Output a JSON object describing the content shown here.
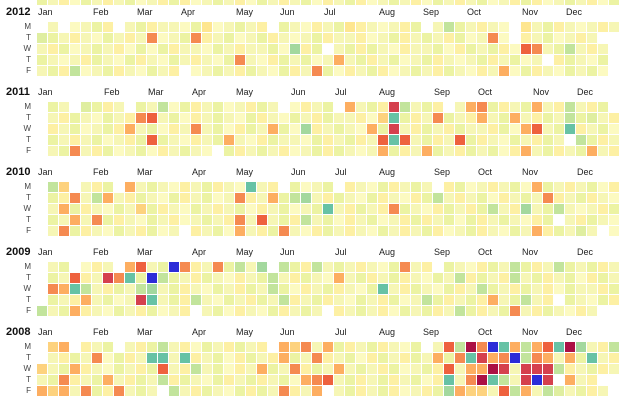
{
  "chart_data": {
    "type": "heatmap",
    "subtype": "calendar-by-year",
    "title": "",
    "row_labels": [
      "M",
      "T",
      "W",
      "T",
      "F"
    ],
    "column_months": [
      "Jan",
      "Feb",
      "Mar",
      "Apr",
      "May",
      "Jun",
      "Jul",
      "Aug",
      "Sep",
      "Oct",
      "Nov",
      "Dec"
    ],
    "weeks_per_year": 53,
    "empty_char": ".",
    "palette": {
      "a": "#fcfac1",
      "b": "#f6f6b5",
      "c": "#ecf3a3",
      "d": "#dfeea0",
      "e": "#c2e49c",
      "f": "#a3d89e",
      "g": "#67c2a5",
      "h": "#fdf0a4",
      "i": "#fee690",
      "j": "#fdd27e",
      "k": "#fdae61",
      "l": "#f58a51",
      "m": "#ee613e",
      "n": "#d5404e",
      "o": "#ab1045",
      "p": "#2c2cd8"
    },
    "top_strip": "cbhacbhbcabhchabcbhacbhbcahbchabcbhacbhbcabhchabcbhac",
    "years": [
      {
        "label": "2012",
        "year": 2012,
        "rows": [
          ".b.abch.bchbbaciabcbh.cbahbcihbabhc.becbhba.ibchbabhb",
          "dcbhbacbhblabclhbcabchbabchbbhabchbcbhcabla.hbcabhb..",
          "bhcabcbhacachbbacbhbbcafhc.bchcbahbbcahcbchamlbcebhb.",
          "cbabhcbachbacbhbaclbahcbcabkbchbcabchbabchbcab.hcbac.",
          "bcheabchbacbh.abcbhcbachblcahbchabcbhcbahbkachbacbca."
        ]
      },
      {
        "label": "2011",
        "year": 2011,
        "rows": [
          ".cb.dchb.cbeachbcabhcb.ahbc.kbchnebch.bklchbckbhebhc.",
          ".bhcbacbhlmbcahbcbachbacbhcbbhajgchblcbhkbckbhcbecdbh",
          ".hbcabchkbcahblbcahcbkcafhbcbakcnbhcbhcbbhcakmbcghbca",
          ".cbhbcabhcmcbahbckbahcbbachbchbmgmbchbmchbacbhcb.echb",
          ".bclbhcabcahbcba.chbcbhabchcbabkchbkcbhcbcahkbchbckbh"
        ]
      },
      {
        "label": "2010",
        "year": 2010,
        "rows": [
          ".ej.bhc.kbcbahbchbagbh.cabc.hbachbcb.hcabhbcakcbhbcah",
          ".chlbekbhcbachbcablhbkcefbhcbachbahcebhbcahbcblhbchba",
          ".bkchbacbjchbacbhbcahbcabcgbhcbhlcbahcbhcebhfbcebabhc",
          ".cbkblchbacbhabcbhlbmbchebcahbcabhchbcachbcbahc.bhcba",
          ".blchbacbhcab.hbcakbhclbahcbhbacbhbchabchbacbkhcbdb.a"
        ]
      },
      {
        "label": "2009",
        "year": 2009,
        "rows": [
          ".bc.ahb.kmbcplhblcebf.echebcbhbaclbh.cbahcbechbecbchb",
          ".cbmhbnlgcpecbhcbahbcebhcbakbchbchbacbehcbhebchbcahcb",
          ".lkgebhcbefbchbacbhcbecahbchbacgbhcbachbecbhcbhacbbhc",
          ".cbhkbcabngbchebacbhcbehbchbacbhcabechbchkbcebh.cbach",
          "ebckhbacbhcabh.bcahbachbcb.hbcbhacbchbechbclbhcbahb.."
        ]
      },
      {
        "label": "2008",
        "year": 2008,
        "rows": [
          ".jk.hbc.bhcebhacbhcbh.kjlbkchbchbac.bmeolpgkekmgofbhe",
          ".bhcblachbggbghbcahcbhkcblhbcahcbhcbkclgnklpelkbkcgbh",
          "jbckhbacbhcmbhebcahbkcblhcbkbcbhcabchmbkkonbnnnehbchb",
          "bclhbckbhcbehcbachbchbcaklmbchbchbcahgblogebnpn.kbh..",
          "kjkblchlbcb.ebhcbachcblhbk.bchbchabhcfkjjbmekbedbchb."
        ]
      }
    ]
  }
}
